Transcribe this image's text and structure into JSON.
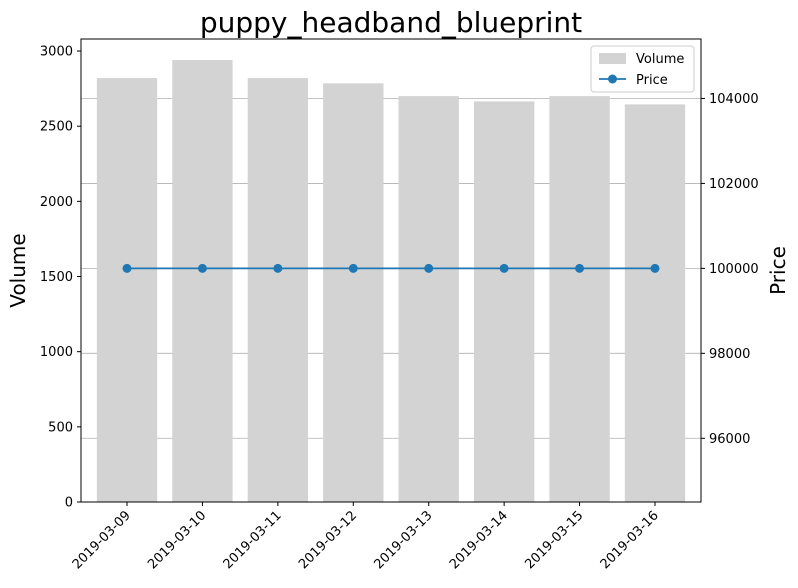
{
  "chart_data": {
    "type": "bar",
    "title": "puppy_headband_blueprint",
    "categories": [
      "2019-03-09",
      "2019-03-10",
      "2019-03-11",
      "2019-03-12",
      "2019-03-13",
      "2019-03-14",
      "2019-03-15",
      "2019-03-16"
    ],
    "series": [
      {
        "name": "Volume",
        "type": "bar",
        "axis": "left",
        "color": "#d3d3d3",
        "values": [
          2820,
          2940,
          2820,
          2785,
          2700,
          2665,
          2700,
          2645
        ]
      },
      {
        "name": "Price",
        "type": "line",
        "axis": "right",
        "color": "#1f77b4",
        "marker": "circle",
        "values": [
          100000,
          100000,
          100000,
          100000,
          100000,
          100000,
          100000,
          100000
        ]
      }
    ],
    "ylabel": "Volume",
    "y2label": "Price",
    "ylim": [
      0,
      3080
    ],
    "y2lim": [
      94500,
      105400
    ],
    "yticks": [
      0,
      500,
      1000,
      1500,
      2000,
      2500,
      3000
    ],
    "y2ticks": [
      96000,
      98000,
      100000,
      102000,
      104000
    ],
    "grid": "horizontal lines on the right axis",
    "legend_position": "upper right"
  }
}
